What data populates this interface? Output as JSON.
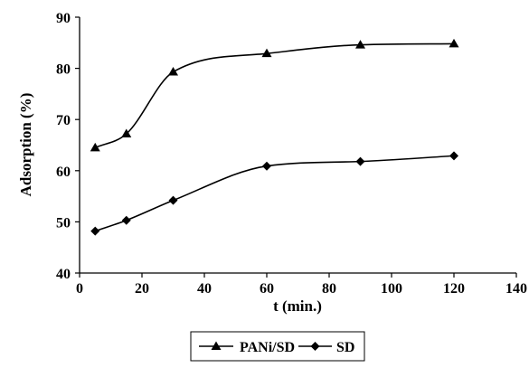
{
  "chart_data": {
    "type": "line",
    "title": "",
    "xlabel": "t (min.)",
    "ylabel": "Adsorption (%)",
    "xlim": [
      0,
      140
    ],
    "ylim": [
      40,
      90
    ],
    "xticks": [
      0,
      20,
      40,
      60,
      80,
      100,
      120,
      140
    ],
    "yticks": [
      40,
      50,
      60,
      70,
      80,
      90
    ],
    "grid": false,
    "legend_position": "bottom",
    "smoothed": true,
    "series": [
      {
        "name": "PANi/SD",
        "marker": "triangle",
        "color": "#000000",
        "x": [
          5,
          15,
          30,
          60,
          90,
          120
        ],
        "y": [
          64.5,
          67.2,
          79.3,
          82.9,
          84.6,
          84.8
        ]
      },
      {
        "name": "SD",
        "marker": "diamond",
        "color": "#000000",
        "x": [
          5,
          15,
          30,
          60,
          90,
          120
        ],
        "y": [
          48.2,
          50.3,
          54.2,
          60.9,
          61.8,
          62.9
        ]
      }
    ]
  }
}
